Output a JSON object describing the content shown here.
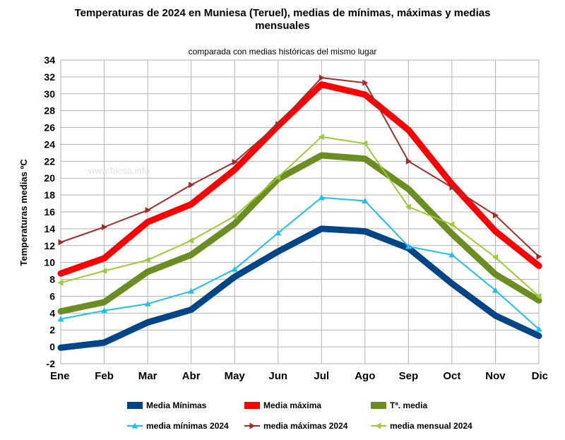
{
  "chart_data": {
    "type": "line",
    "title": "Temperaturas de 2024 en Muniesa (Teruel), medias de mínimas, máximas y medias mensuales",
    "subtitle": "comparada con medias históricas del mismo lugar",
    "ylabel": "Temperaturas medias ºC",
    "watermark": "www.blesa.info",
    "categories": [
      "Ene",
      "Feb",
      "Mar",
      "Abr",
      "May",
      "Jun",
      "Jul",
      "Ago",
      "Sep",
      "Oct",
      "Nov",
      "Dic"
    ],
    "ylim": [
      -2,
      34
    ],
    "yticks": [
      -2,
      0,
      2,
      4,
      6,
      8,
      10,
      12,
      14,
      16,
      18,
      20,
      22,
      24,
      26,
      28,
      30,
      32,
      34
    ],
    "grid": true,
    "legend_position": "bottom",
    "series": [
      {
        "name": "Media Mínimas",
        "color": "#004586",
        "style": "thick",
        "values": [
          -0.1,
          0.5,
          2.9,
          4.4,
          8.3,
          11.3,
          14.0,
          13.7,
          11.7,
          7.5,
          3.7,
          1.3
        ]
      },
      {
        "name": "Media máxima",
        "color": "#ff0000",
        "style": "thick",
        "values": [
          8.7,
          10.5,
          14.8,
          16.9,
          21.0,
          26.2,
          31.1,
          29.9,
          25.7,
          19.3,
          13.7,
          9.6
        ]
      },
      {
        "name": "Tª. media",
        "color": "#6b8e23",
        "style": "thick",
        "values": [
          4.2,
          5.3,
          8.9,
          10.9,
          14.6,
          19.9,
          22.7,
          22.3,
          18.7,
          13.4,
          8.6,
          5.5
        ]
      },
      {
        "name": "media mínimas 2024",
        "color": "#1ec0f0",
        "style": "triangle-up",
        "values": [
          3.3,
          4.3,
          5.1,
          6.6,
          9.2,
          13.5,
          17.7,
          17.3,
          11.9,
          10.9,
          6.7,
          2.1
        ]
      },
      {
        "name": "media máximas 2024",
        "color": "#a52a2a",
        "style": "triangle-right",
        "values": [
          12.4,
          14.2,
          16.2,
          19.2,
          21.9,
          26.4,
          31.9,
          31.3,
          22.0,
          18.9,
          15.6,
          10.7
        ]
      },
      {
        "name": "media mensual 2024",
        "color": "#9acd32",
        "style": "triangle-left",
        "values": [
          7.6,
          9.0,
          10.3,
          12.6,
          15.5,
          20.1,
          24.9,
          24.1,
          16.6,
          14.5,
          10.6,
          6.0
        ]
      }
    ]
  }
}
